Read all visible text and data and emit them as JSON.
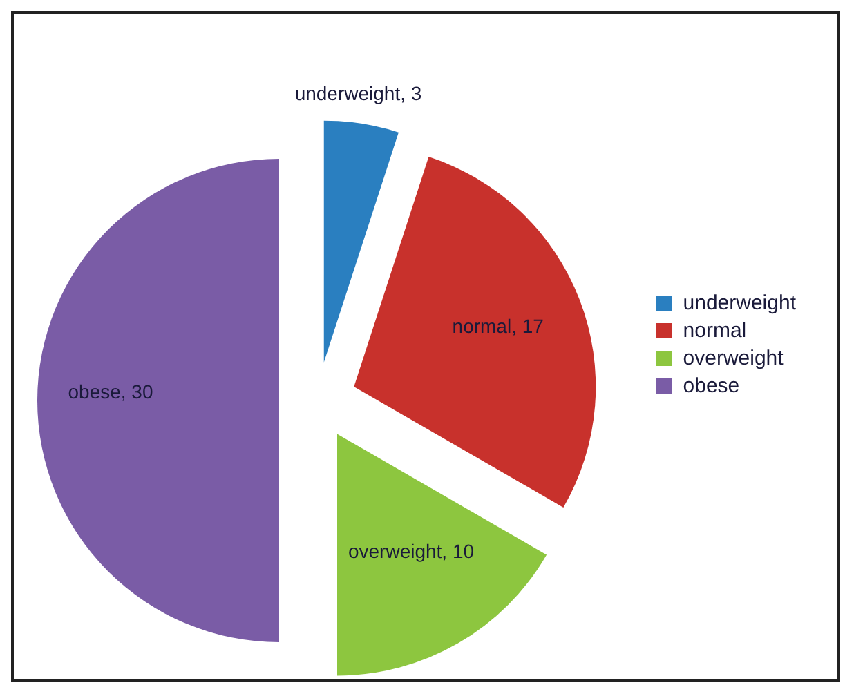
{
  "chart_data": {
    "type": "pie",
    "categories": [
      "underweight",
      "normal",
      "overweight",
      "obese"
    ],
    "values": [
      3,
      17,
      10,
      30
    ],
    "colors": [
      "#2a7fc0",
      "#c8312c",
      "#8dc63f",
      "#7a5ca6"
    ],
    "value_labels": [
      "underweight, 3",
      "normal, 17",
      "overweight, 10",
      "obese, 30"
    ],
    "legend": "right"
  }
}
